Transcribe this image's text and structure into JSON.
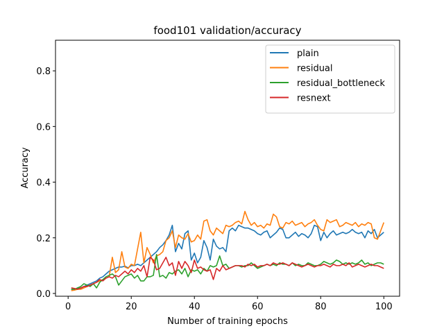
{
  "chart_data": {
    "type": "line",
    "title": "food101 validation/accuracy",
    "xlabel": "Number of training epochs",
    "ylabel": "Accuracy",
    "xlim": [
      -4,
      105
    ],
    "ylim": [
      -0.01,
      0.91
    ],
    "xticks": [
      0,
      20,
      40,
      60,
      80,
      100
    ],
    "xtick_labels": [
      "0",
      "20",
      "40",
      "60",
      "80",
      "100"
    ],
    "yticks": [
      0.0,
      0.2,
      0.4,
      0.6,
      0.8
    ],
    "ytick_labels": [
      "0.0",
      "0.2",
      "0.4",
      "0.6",
      "0.8"
    ],
    "grid": false,
    "legend_position": "top-right",
    "x": [
      1,
      2,
      3,
      4,
      5,
      6,
      7,
      8,
      9,
      10,
      11,
      12,
      13,
      14,
      15,
      16,
      17,
      18,
      19,
      20,
      21,
      22,
      23,
      24,
      25,
      26,
      27,
      28,
      29,
      30,
      31,
      32,
      33,
      34,
      35,
      36,
      37,
      38,
      39,
      40,
      41,
      42,
      43,
      44,
      45,
      46,
      47,
      48,
      49,
      50,
      51,
      52,
      53,
      54,
      55,
      56,
      57,
      58,
      59,
      60,
      61,
      62,
      63,
      64,
      65,
      66,
      67,
      68,
      69,
      70,
      71,
      72,
      73,
      74,
      75,
      76,
      77,
      78,
      79,
      80,
      81,
      82,
      83,
      84,
      85,
      86,
      87,
      88,
      89,
      90,
      91,
      92,
      93,
      94,
      95,
      96,
      97,
      98,
      99,
      100
    ],
    "series": [
      {
        "name": "plain",
        "color": "#1f77b4",
        "values": [
          0.015,
          0.012,
          0.02,
          0.018,
          0.025,
          0.03,
          0.035,
          0.04,
          0.045,
          0.055,
          0.06,
          0.07,
          0.08,
          0.085,
          0.09,
          0.095,
          0.095,
          0.098,
          0.092,
          0.1,
          0.1,
          0.105,
          0.1,
          0.11,
          0.12,
          0.13,
          0.14,
          0.15,
          0.165,
          0.175,
          0.19,
          0.21,
          0.245,
          0.15,
          0.18,
          0.16,
          0.215,
          0.225,
          0.12,
          0.145,
          0.11,
          0.13,
          0.19,
          0.165,
          0.12,
          0.195,
          0.17,
          0.16,
          0.165,
          0.15,
          0.225,
          0.235,
          0.225,
          0.245,
          0.24,
          0.235,
          0.235,
          0.23,
          0.225,
          0.215,
          0.21,
          0.22,
          0.225,
          0.2,
          0.21,
          0.22,
          0.235,
          0.23,
          0.2,
          0.2,
          0.21,
          0.22,
          0.205,
          0.215,
          0.21,
          0.2,
          0.215,
          0.245,
          0.24,
          0.19,
          0.22,
          0.2,
          0.215,
          0.225,
          0.21,
          0.215,
          0.22,
          0.215,
          0.22,
          0.23,
          0.22,
          0.215,
          0.22,
          0.2,
          0.225,
          0.215,
          0.23,
          0.2,
          0.21,
          0.22
        ]
      },
      {
        "name": "residual",
        "color": "#ff7f0e",
        "values": [
          0.01,
          0.012,
          0.015,
          0.015,
          0.02,
          0.025,
          0.03,
          0.035,
          0.04,
          0.045,
          0.05,
          0.055,
          0.06,
          0.13,
          0.075,
          0.085,
          0.15,
          0.095,
          0.09,
          0.105,
          0.1,
          0.16,
          0.22,
          0.11,
          0.165,
          0.14,
          0.11,
          0.135,
          0.14,
          0.15,
          0.19,
          0.2,
          0.225,
          0.165,
          0.21,
          0.2,
          0.195,
          0.215,
          0.185,
          0.19,
          0.21,
          0.195,
          0.26,
          0.265,
          0.225,
          0.21,
          0.235,
          0.225,
          0.215,
          0.245,
          0.24,
          0.245,
          0.255,
          0.26,
          0.25,
          0.295,
          0.265,
          0.245,
          0.255,
          0.24,
          0.245,
          0.235,
          0.25,
          0.245,
          0.285,
          0.275,
          0.24,
          0.235,
          0.255,
          0.25,
          0.26,
          0.245,
          0.25,
          0.255,
          0.24,
          0.25,
          0.255,
          0.265,
          0.245,
          0.23,
          0.225,
          0.265,
          0.255,
          0.26,
          0.265,
          0.24,
          0.245,
          0.255,
          0.25,
          0.245,
          0.255,
          0.24,
          0.25,
          0.245,
          0.255,
          0.25,
          0.2,
          0.195,
          0.225,
          0.255
        ]
      },
      {
        "name": "residual_bottleneck",
        "color": "#2ca02c",
        "values": [
          0.015,
          0.015,
          0.02,
          0.025,
          0.035,
          0.03,
          0.025,
          0.035,
          0.02,
          0.04,
          0.05,
          0.06,
          0.065,
          0.07,
          0.06,
          0.03,
          0.045,
          0.06,
          0.065,
          0.07,
          0.055,
          0.065,
          0.045,
          0.045,
          0.06,
          0.06,
          0.065,
          0.14,
          0.06,
          0.065,
          0.055,
          0.075,
          0.07,
          0.08,
          0.085,
          0.07,
          0.09,
          0.06,
          0.085,
          0.08,
          0.085,
          0.07,
          0.09,
          0.08,
          0.1,
          0.095,
          0.1,
          0.135,
          0.1,
          0.105,
          0.09,
          0.095,
          0.1,
          0.1,
          0.095,
          0.1,
          0.1,
          0.11,
          0.1,
          0.09,
          0.095,
          0.1,
          0.105,
          0.1,
          0.105,
          0.1,
          0.11,
          0.105,
          0.105,
          0.1,
          0.11,
          0.1,
          0.105,
          0.1,
          0.1,
          0.11,
          0.105,
          0.1,
          0.1,
          0.105,
          0.115,
          0.11,
          0.105,
          0.11,
          0.12,
          0.115,
          0.105,
          0.11,
          0.105,
          0.11,
          0.105,
          0.11,
          0.12,
          0.105,
          0.11,
          0.1,
          0.105,
          0.11,
          0.11,
          0.105
        ]
      },
      {
        "name": "resnext",
        "color": "#d62728",
        "values": [
          0.02,
          0.018,
          0.015,
          0.02,
          0.025,
          0.025,
          0.03,
          0.035,
          0.04,
          0.05,
          0.045,
          0.055,
          0.06,
          0.055,
          0.065,
          0.06,
          0.07,
          0.08,
          0.07,
          0.085,
          0.075,
          0.09,
          0.08,
          0.1,
          0.06,
          0.13,
          0.12,
          0.085,
          0.09,
          0.11,
          0.13,
          0.1,
          0.11,
          0.065,
          0.115,
          0.09,
          0.115,
          0.1,
          0.075,
          0.12,
          0.09,
          0.095,
          0.085,
          0.08,
          0.085,
          0.05,
          0.09,
          0.08,
          0.1,
          0.085,
          0.09,
          0.095,
          0.1,
          0.1,
          0.1,
          0.095,
          0.105,
          0.1,
          0.105,
          0.095,
          0.1,
          0.1,
          0.105,
          0.1,
          0.11,
          0.105,
          0.105,
          0.11,
          0.105,
          0.1,
          0.11,
          0.105,
          0.1,
          0.095,
          0.1,
          0.105,
          0.1,
          0.095,
          0.1,
          0.1,
          0.105,
          0.1,
          0.095,
          0.105,
          0.1,
          0.1,
          0.105,
          0.1,
          0.11,
          0.095,
          0.1,
          0.105,
          0.1,
          0.095,
          0.1,
          0.105,
          0.1,
          0.1,
          0.095,
          0.09
        ]
      }
    ]
  }
}
